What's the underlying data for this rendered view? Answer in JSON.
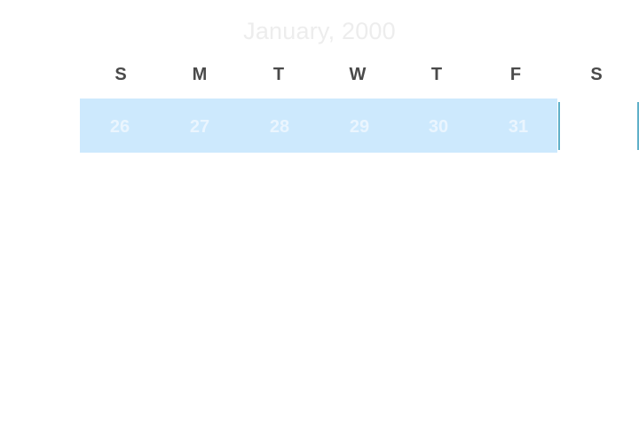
{
  "calendar": {
    "month_title": "January, 2000",
    "weekdays": [
      "S",
      "M",
      "T",
      "W",
      "T",
      "F",
      "S"
    ],
    "week": {
      "days": [
        "26",
        "27",
        "28",
        "29",
        "30",
        "31",
        ""
      ]
    }
  },
  "colors": {
    "range_highlight": "#cde9fd",
    "selection_border": "#5fb0c8",
    "weekday_text": "#4a4a4a",
    "title_text": "#ededed"
  }
}
